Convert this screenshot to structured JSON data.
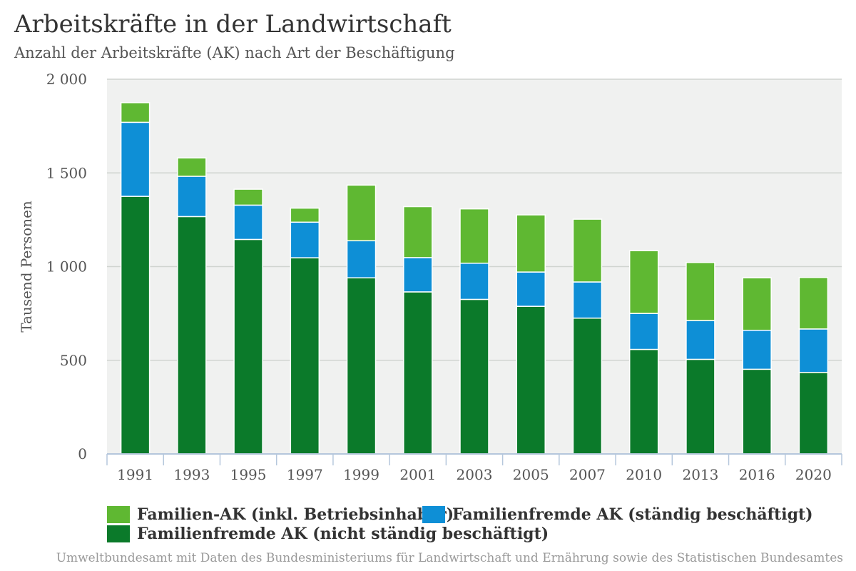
{
  "header": {
    "title": "Arbeitskräfte in der Landwirtschaft",
    "subtitle": "Anzahl der Arbeitskräfte (AK) nach Art der Beschäftigung"
  },
  "source": "Umweltbundesamt mit Daten des Bundesministeriums für Landwirtschaft und Ernährung sowie des Statistischen Bundesamtes",
  "colors": {
    "plot_background": "#f0f1f0",
    "gridline": "#d0d4d0",
    "axis": "#b5c7dc",
    "bar_border": "#ffffff"
  },
  "chart_data": {
    "type": "bar",
    "stacked": true,
    "title": "Arbeitskräfte in der Landwirtschaft",
    "subtitle": "Anzahl der Arbeitskräfte (AK) nach Art der Beschäftigung",
    "xlabel": "",
    "ylabel": "Tausend Personen",
    "ylim": [
      0,
      2000
    ],
    "yticks": [
      0,
      500,
      1000,
      1500,
      2000
    ],
    "ytick_labels": [
      "0",
      "500",
      "1 000",
      "1 500",
      "2 000"
    ],
    "categories": [
      "1991",
      "1993",
      "1995",
      "1997",
      "1999",
      "2001",
      "2003",
      "2005",
      "2007",
      "2010",
      "2013",
      "2016",
      "2020"
    ],
    "grid": true,
    "legend_position": "bottom",
    "series": [
      {
        "name": "Familienfremde AK (nicht ständig beschäftigt)",
        "color": "#0b7a2a",
        "values": [
          1375,
          1267,
          1145,
          1047,
          940,
          865,
          825,
          788,
          725,
          558,
          505,
          452,
          435
        ]
      },
      {
        "name": "Familienfremde AK (ständig beschäftigt)",
        "color": "#0e8fd6",
        "values": [
          395,
          215,
          183,
          190,
          198,
          183,
          193,
          183,
          193,
          192,
          207,
          208,
          232
        ]
      },
      {
        "name": "Familien-AK (inkl. Betriebsinhaber)",
        "color": "#5fb832",
        "values": [
          105,
          98,
          85,
          75,
          297,
          272,
          290,
          305,
          335,
          335,
          310,
          280,
          275
        ]
      }
    ]
  }
}
